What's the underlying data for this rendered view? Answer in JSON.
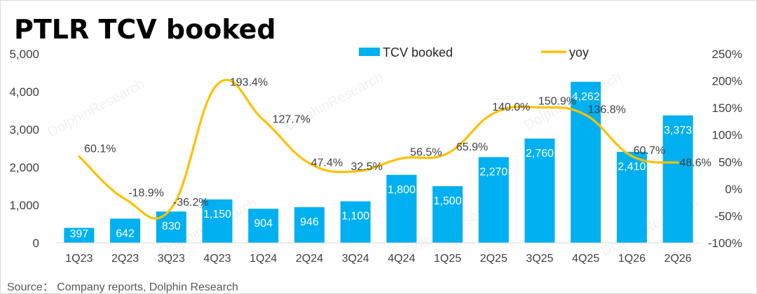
{
  "title": "PTLR TCV booked",
  "source": "Source： Company reports, Dolphin Research",
  "watermark": "DolphinResearch",
  "colors": {
    "bar": "#00b0f0",
    "line": "#ffc000",
    "axis": "#d9d9d9",
    "text": "#404040"
  },
  "chart_data": {
    "type": "bar+line",
    "categories": [
      "1Q23",
      "2Q23",
      "3Q23",
      "4Q23",
      "1Q24",
      "2Q24",
      "3Q24",
      "4Q24",
      "1Q25",
      "2Q25",
      "3Q25",
      "4Q25",
      "1Q26",
      "2Q26"
    ],
    "series": [
      {
        "name": "TCV booked",
        "type": "bar",
        "axis": "left",
        "values": [
          397,
          642,
          830,
          1150,
          904,
          946,
          1100,
          1800,
          1500,
          2270,
          2760,
          4262,
          2410,
          3373
        ],
        "labels": [
          "397",
          "642",
          "830",
          "1,150",
          "904",
          "946",
          "1,100",
          "1,800",
          "1,500",
          "2,270",
          "2,760",
          "4,262",
          "2,410",
          "3,373"
        ]
      },
      {
        "name": "yoy",
        "type": "line",
        "axis": "right",
        "values": [
          60.1,
          -18.9,
          -36.2,
          193.4,
          127.7,
          47.4,
          32.5,
          56.5,
          65.9,
          140.0,
          150.9,
          136.8,
          60.7,
          48.6
        ],
        "labels": [
          "60.1%",
          "-18.9%",
          "-36.2%",
          "193.4%",
          "127.7%",
          "47.4%",
          "32.5%",
          "56.5%",
          "65.9%",
          "140.0%",
          "150.9%",
          "136.8%",
          "60.7%",
          "48.6%"
        ]
      }
    ],
    "left_axis": {
      "min": 0,
      "max": 5000,
      "ticks": [
        "0",
        "1,000",
        "2,000",
        "3,000",
        "4,000",
        "5,000"
      ]
    },
    "right_axis": {
      "min": -100,
      "max": 250,
      "ticks": [
        "-100%",
        "-50%",
        "0%",
        "50%",
        "100%",
        "150%",
        "200%",
        "250%"
      ]
    },
    "legend_position": "top",
    "grid": false
  }
}
